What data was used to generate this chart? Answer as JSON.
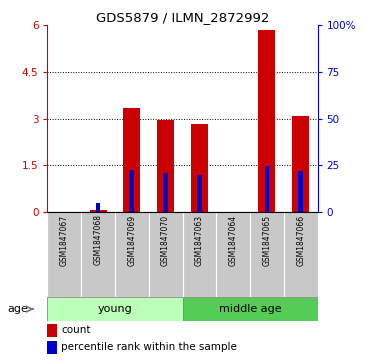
{
  "title": "GDS5879 / ILMN_2872992",
  "samples": [
    "GSM1847067",
    "GSM1847068",
    "GSM1847069",
    "GSM1847070",
    "GSM1847063",
    "GSM1847064",
    "GSM1847065",
    "GSM1847066"
  ],
  "count_values": [
    0.0,
    0.05,
    3.35,
    2.95,
    2.82,
    0.0,
    5.85,
    3.08
  ],
  "percentile_values": [
    0.0,
    5.0,
    22.5,
    20.8,
    20.0,
    0.0,
    24.5,
    21.7
  ],
  "ylim_left": [
    0,
    6
  ],
  "ylim_right": [
    0,
    100
  ],
  "yticks_left": [
    0,
    1.5,
    3,
    4.5,
    6
  ],
  "yticks_right": [
    0,
    25,
    50,
    75,
    100
  ],
  "ytick_labels_left": [
    "0",
    "1.5",
    "3",
    "4.5",
    "6"
  ],
  "ytick_labels_right": [
    "0",
    "25",
    "50",
    "75",
    "100%"
  ],
  "bar_color": "#cc0000",
  "percentile_color": "#0000cc",
  "bar_width": 0.5,
  "groups": [
    {
      "label": "young",
      "indices": [
        0,
        1,
        2,
        3
      ],
      "color": "#bbffbb"
    },
    {
      "label": "middle age",
      "indices": [
        4,
        5,
        6,
        7
      ],
      "color": "#55cc55"
    }
  ],
  "age_label": "age",
  "legend_count_label": "count",
  "legend_percentile_label": "percentile rank within the sample",
  "left_axis_color": "#cc0000",
  "right_axis_color": "#0000cc",
  "bg_color": "#ffffff",
  "xtick_bg": "#c8c8c8"
}
